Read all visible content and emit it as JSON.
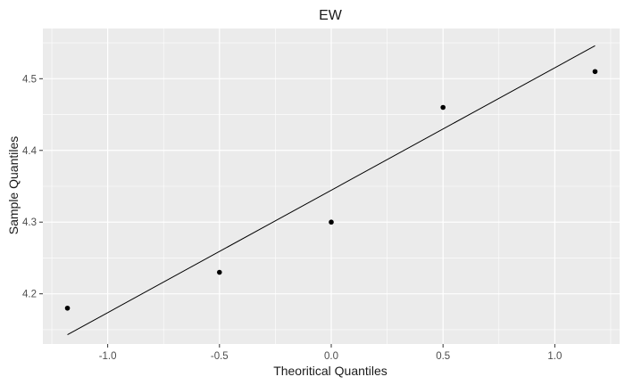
{
  "chart_data": {
    "type": "scatter",
    "title": "EW",
    "xlabel": "Theoritical Quantiles",
    "ylabel": "Sample Quantiles",
    "xlim": [
      -1.29,
      1.29
    ],
    "ylim": [
      4.13,
      4.57
    ],
    "x_ticks": [
      -1.0,
      -0.5,
      0.0,
      0.5,
      1.0
    ],
    "x_tick_labels": [
      "-1.0",
      "-0.5",
      "0.0",
      "0.5",
      "1.0"
    ],
    "y_ticks": [
      4.2,
      4.3,
      4.4,
      4.5
    ],
    "y_tick_labels": [
      "4.2",
      "4.3",
      "4.4",
      "4.5"
    ],
    "grid": true,
    "legend": "none",
    "points": [
      {
        "x": -1.18,
        "y": 4.18
      },
      {
        "x": -0.5,
        "y": 4.23
      },
      {
        "x": 0.0,
        "y": 4.3
      },
      {
        "x": 0.5,
        "y": 4.46
      },
      {
        "x": 1.18,
        "y": 4.51
      }
    ],
    "reference_line": {
      "x": [
        -1.18,
        1.18
      ],
      "y": [
        4.143,
        4.546
      ]
    },
    "colors": {
      "panel": "#ebebeb",
      "grid_major": "#ffffff",
      "point": "#000000",
      "line": "#000000"
    }
  }
}
